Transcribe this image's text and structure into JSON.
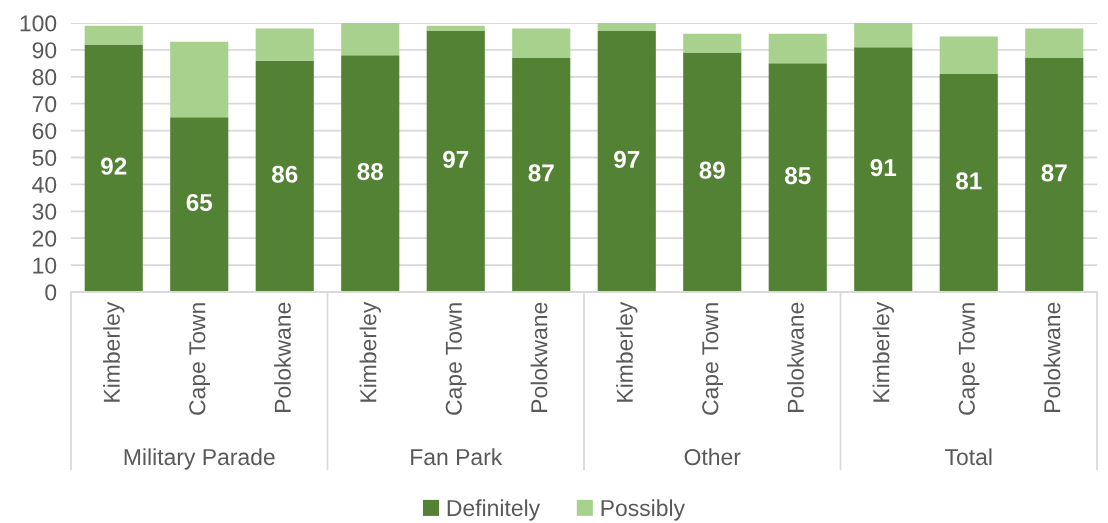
{
  "chart_data": {
    "type": "bar",
    "stacked": true,
    "categories": [
      "Kimberley",
      "Cape Town",
      "Polokwane",
      "Kimberley",
      "Cape Town",
      "Polokwane",
      "Kimberley",
      "Cape Town",
      "Polokwane",
      "Kimberley",
      "Cape Town",
      "Polokwane"
    ],
    "series": [
      {
        "name": "Definitely",
        "color": "#548235",
        "values": [
          92,
          65,
          86,
          88,
          97,
          87,
          97,
          89,
          85,
          91,
          81,
          87
        ],
        "value_labels": [
          "92",
          "65",
          "86",
          "88",
          "97",
          "87",
          "97",
          "89",
          "85",
          "91",
          "81",
          "87"
        ]
      },
      {
        "name": "Possibly",
        "color": "#a9d18e",
        "values": [
          7,
          28,
          12,
          12,
          2,
          11,
          3,
          7,
          11,
          9,
          14,
          11
        ]
      }
    ],
    "ylim": [
      0,
      100
    ],
    "yticks": [
      0,
      10,
      20,
      30,
      40,
      50,
      60,
      70,
      80,
      90,
      100
    ],
    "grid": "y",
    "legend": "bottom",
    "annotations": [
      "Military Parade",
      "Fan Park",
      "Other",
      "Total"
    ]
  }
}
